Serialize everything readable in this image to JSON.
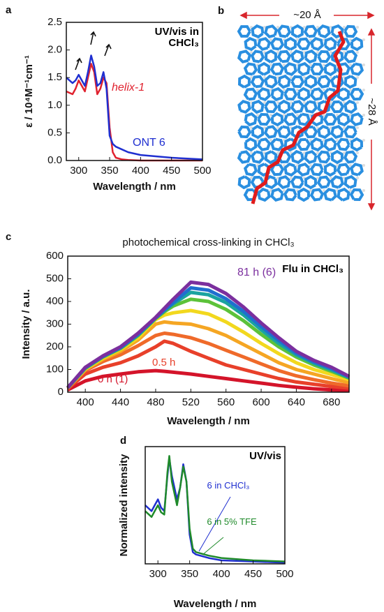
{
  "chart_data": [
    {
      "type": "line",
      "label": "a",
      "annotation": "UV/vis in CHCl₃",
      "x_label": "Wavelength / nm",
      "y_label": "ε / 10⁴M⁻¹cm⁻¹",
      "x": [
        280,
        290,
        295,
        300,
        305,
        310,
        315,
        320,
        325,
        330,
        335,
        340,
        345,
        350,
        355,
        360,
        370,
        380,
        400,
        450,
        500
      ],
      "xlim": [
        280,
        500
      ],
      "xticks": [
        300,
        350,
        400,
        450,
        500
      ],
      "ylim": [
        0,
        2.5
      ],
      "yticks": [
        {
          "value": 0,
          "label": "0.0"
        },
        0.5,
        {
          "value": 1,
          "label": "1.0"
        },
        1.5,
        {
          "value": 2,
          "label": "2.0"
        },
        2.5
      ],
      "series": [
        {
          "name": "helix-1",
          "color": "#e0222f",
          "values": [
            1.25,
            1.2,
            1.3,
            1.45,
            1.35,
            1.25,
            1.5,
            1.75,
            1.6,
            1.2,
            1.3,
            1.5,
            1.4,
            0.6,
            0.15,
            0.05,
            0.02,
            0.01,
            0,
            0,
            0
          ]
        },
        {
          "name": "ONT 6",
          "color": "#1f2fd0",
          "values": [
            1.5,
            1.4,
            1.45,
            1.55,
            1.45,
            1.35,
            1.6,
            1.9,
            1.7,
            1.35,
            1.4,
            1.6,
            1.3,
            0.45,
            0.3,
            0.25,
            0.2,
            0.15,
            0.1,
            0.05,
            0.02
          ]
        }
      ]
    },
    {
      "type": "line",
      "label": "c",
      "title": "photochemical cross-linking in CHCl₃",
      "annotation": "Flu in CHCl₃",
      "x_label": "Wavelength / nm",
      "y_label": "Intensity / a.u.",
      "x": [
        380,
        400,
        420,
        440,
        460,
        480,
        490,
        500,
        520,
        540,
        560,
        580,
        600,
        620,
        640,
        660,
        680,
        700
      ],
      "xlim": [
        380,
        700
      ],
      "xticks": [
        400,
        440,
        480,
        520,
        560,
        600,
        640,
        680
      ],
      "ylim": [
        0,
        600
      ],
      "yticks": [
        0,
        100,
        200,
        300,
        400,
        500,
        600
      ],
      "series": [
        {
          "name": "0 h (1)",
          "color": "#d4142a",
          "values": [
            10,
            50,
            70,
            80,
            90,
            95,
            92,
            88,
            80,
            70,
            60,
            50,
            40,
            30,
            22,
            15,
            10,
            8
          ]
        },
        {
          "name": "0.5 h",
          "color": "#e8402a",
          "values": [
            15,
            80,
            110,
            130,
            160,
            200,
            225,
            215,
            180,
            150,
            120,
            100,
            80,
            60,
            45,
            35,
            25,
            18
          ]
        },
        {
          "color": "#ef6a2a",
          "values": [
            18,
            95,
            135,
            165,
            205,
            250,
            260,
            255,
            240,
            215,
            185,
            155,
            125,
            95,
            72,
            55,
            40,
            28
          ]
        },
        {
          "color": "#f5a623",
          "values": [
            18,
            100,
            145,
            180,
            230,
            300,
            310,
            305,
            300,
            280,
            250,
            210,
            170,
            130,
            100,
            80,
            60,
            42
          ]
        },
        {
          "color": "#f2d81e",
          "values": [
            19,
            102,
            150,
            188,
            240,
            320,
            340,
            350,
            360,
            345,
            310,
            265,
            215,
            170,
            130,
            100,
            78,
            55
          ]
        },
        {
          "color": "#5cc23a",
          "values": [
            19,
            105,
            155,
            193,
            250,
            325,
            355,
            380,
            410,
            400,
            365,
            315,
            255,
            200,
            155,
            120,
            92,
            62
          ]
        },
        {
          "color": "#1aa3a0",
          "values": [
            20,
            107,
            157,
            195,
            253,
            327,
            360,
            390,
            440,
            430,
            395,
            340,
            275,
            215,
            165,
            128,
            98,
            65
          ]
        },
        {
          "color": "#1f6fcf",
          "values": [
            20,
            108,
            158,
            197,
            255,
            328,
            362,
            395,
            460,
            450,
            412,
            356,
            290,
            228,
            172,
            134,
            104,
            68
          ]
        },
        {
          "name": "81 h (6)",
          "color": "#7b2f9e",
          "values": [
            20,
            110,
            160,
            200,
            260,
            330,
            370,
            410,
            485,
            475,
            435,
            375,
            305,
            240,
            180,
            140,
            110,
            70
          ]
        }
      ]
    },
    {
      "type": "line",
      "label": "d",
      "annotation": "UV/vis",
      "x_label": "Wavelength / nm",
      "y_label": "Normalized intensity",
      "x": [
        280,
        290,
        295,
        300,
        305,
        310,
        315,
        318,
        322,
        330,
        335,
        340,
        345,
        350,
        355,
        360,
        380,
        400,
        450,
        500
      ],
      "xlim": [
        280,
        500
      ],
      "xticks": [
        300,
        350,
        400,
        450,
        500
      ],
      "ylim": [
        0,
        1
      ],
      "series": [
        {
          "name": "6 in CHCl₃",
          "color": "#1f2fd0",
          "values": [
            0.5,
            0.45,
            0.5,
            0.55,
            0.48,
            0.45,
            0.75,
            0.9,
            0.75,
            0.55,
            0.65,
            0.85,
            0.7,
            0.25,
            0.1,
            0.08,
            0.05,
            0.03,
            0.02,
            0.01
          ]
        },
        {
          "name": "6 in 5% TFE",
          "color": "#1f8a2a",
          "values": [
            0.45,
            0.4,
            0.45,
            0.5,
            0.44,
            0.42,
            0.78,
            0.92,
            0.7,
            0.5,
            0.65,
            0.83,
            0.7,
            0.3,
            0.13,
            0.1,
            0.07,
            0.05,
            0.03,
            0.02
          ]
        }
      ]
    }
  ],
  "structure": {
    "label": "b",
    "width_label": "~20 Å",
    "height_label": "~28 Å"
  }
}
